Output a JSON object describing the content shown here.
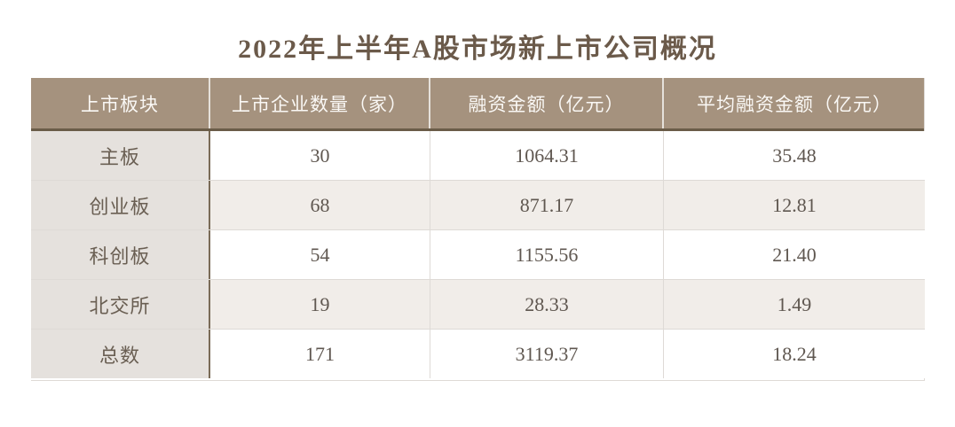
{
  "chart_data": {
    "type": "table",
    "title": "2022年上半年A股市场新上市公司概况",
    "columns": [
      "上市板块",
      "上市企业数量（家）",
      "融资金额（亿元）",
      "平均融资金额（亿元）"
    ],
    "rows": [
      [
        "主板",
        "30",
        "1064.31",
        "35.48"
      ],
      [
        "创业板",
        "68",
        "871.17",
        "12.81"
      ],
      [
        "科创板",
        "54",
        "1155.56",
        "21.40"
      ],
      [
        "北交所",
        "19",
        "28.33",
        "1.49"
      ],
      [
        "总数",
        "171",
        "3119.37",
        "18.24"
      ]
    ],
    "layout": {
      "header_position": "top",
      "zebra_striping": true,
      "label_column": "上市板块"
    }
  },
  "colors": {
    "header_bg": "#a5927e",
    "header_text": "#faf8f5",
    "label_column_bg": "#e5e1dd",
    "row_alt_bg": "#f1ede9",
    "row_bg": "#ffffff",
    "accent_border": "#6a5c48",
    "label_divider": "#7a6b57",
    "light_divider": "#dedad6",
    "title_text": "#6b5a4a",
    "body_text": "#5f5750"
  }
}
